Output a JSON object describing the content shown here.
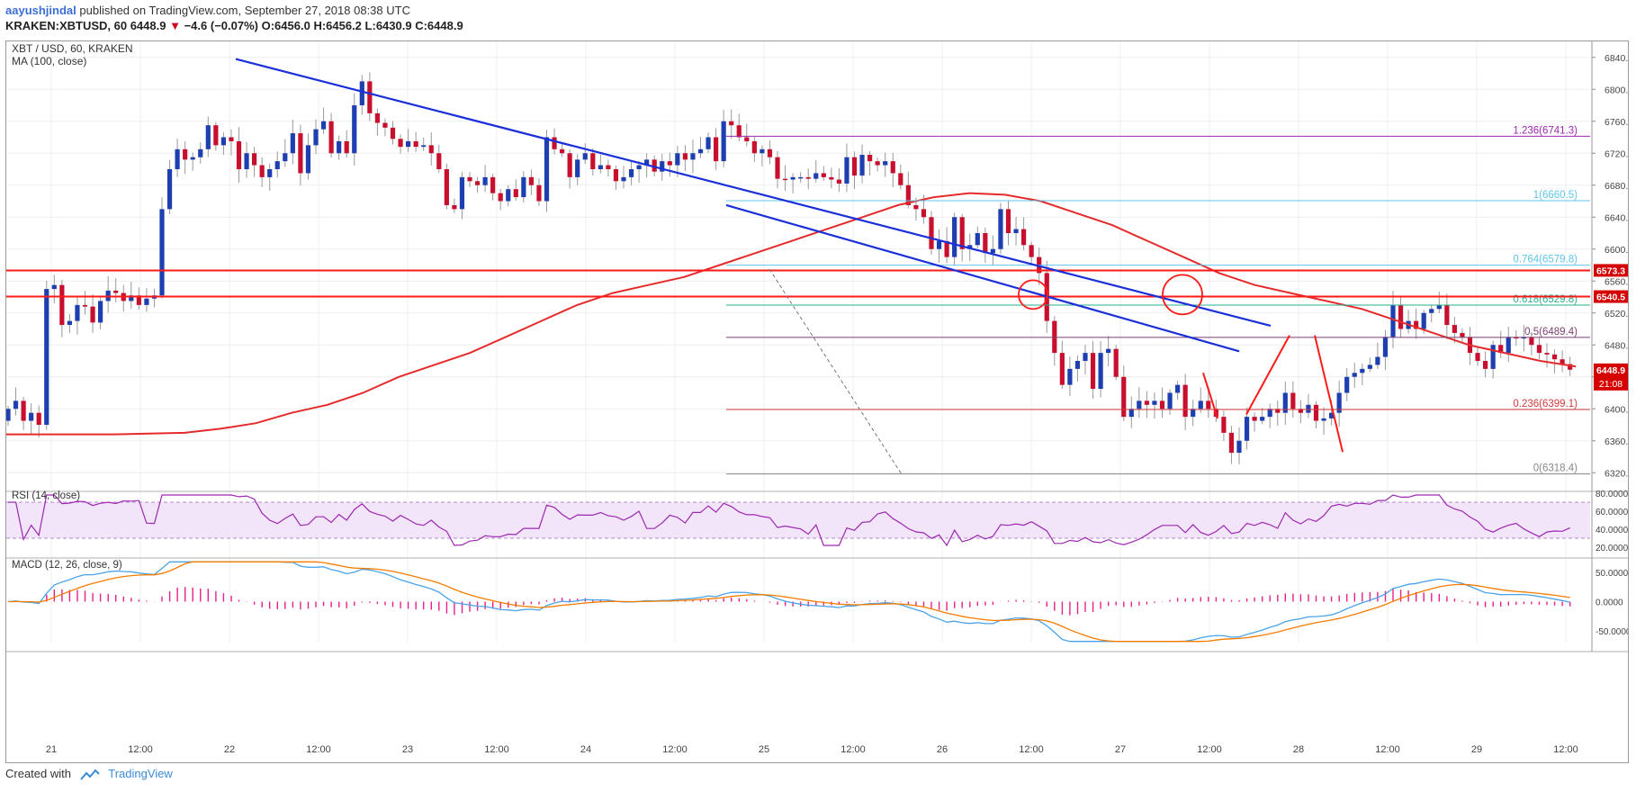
{
  "header": {
    "author": "aayushjindal",
    "published": "published on TradingView.com, September 27, 2018 08:38 UTC",
    "symbol": "KRAKEN:XBTUSD, 60",
    "price": "6448.9",
    "change_arrow": "▼",
    "change": "−4.6 (−0.07%)",
    "o": "O:6456.0",
    "h": "H:6456.2",
    "l": "L:6430.9",
    "c": "C:6448.9"
  },
  "footer": {
    "created_with": "Created with",
    "brand": "TradingView"
  },
  "colors": {
    "up": "#1e3fb0",
    "down": "#c8102e",
    "trendline": "#1a2fd8",
    "ma": "#e52b2b",
    "rsi": "#9c27b0",
    "macd": "#4aa3e8",
    "signal": "#f57c00",
    "hist": "#e91e8c",
    "fib_1236": "#9c27b0",
    "fib_1": "#5fc6e8",
    "fib_0764": "#5fc6e8",
    "fib_0618": "#27b08f",
    "fib_05": "#7b3f6f",
    "fib_0236": "#d33a3a",
    "fib_0": "#888888",
    "sr": "#ff1a1a",
    "price_tag": "#d50000"
  },
  "chart_data": [
    {
      "type": "candlestick",
      "title": "XBT / USD, 60, KRAKEN",
      "indicator": "MA (100, close)",
      "ylim": [
        6300,
        6860
      ],
      "y_ticks": [
        "6840.0",
        "6800.0",
        "6760.0",
        "6720.0",
        "6680.0",
        "6640.0",
        "6600.0",
        "6560.0",
        "6520.0",
        "6480.0",
        "6440.0",
        "6400.0",
        "6360.0",
        "6320.0"
      ],
      "x_ticks": [
        "21",
        "12:00",
        "22",
        "12:00",
        "23",
        "12:00",
        "24",
        "12:00",
        "25",
        "12:00",
        "26",
        "12:00",
        "27",
        "12:00",
        "28",
        "12:00",
        "29",
        "12:00"
      ],
      "price_tags": [
        {
          "label": "6573.3",
          "value": 6573.3
        },
        {
          "label": "6540.5",
          "value": 6540.5
        },
        {
          "label": "6448.9",
          "value": 6448.9,
          "sub": "21:08"
        }
      ],
      "fib_levels": [
        {
          "label": "1.236(6741.3)",
          "value": 6741.3,
          "color_key": "fib_1236"
        },
        {
          "label": "1(6660.5)",
          "value": 6660.5,
          "color_key": "fib_1"
        },
        {
          "label": "0.764(6579.8)",
          "value": 6579.8,
          "color_key": "fib_0764"
        },
        {
          "label": "0.618(6529.8)",
          "value": 6529.8,
          "color_key": "fib_0618"
        },
        {
          "label": "0.5(6489.4)",
          "value": 6489.4,
          "color_key": "fib_05"
        },
        {
          "label": "0.236(6399.1)",
          "value": 6399.1,
          "color_key": "fib_0236"
        },
        {
          "label": "0(6318.4)",
          "value": 6318.4,
          "color_key": "fib_0"
        }
      ],
      "support_resistance": [
        6573.3,
        6540.5
      ],
      "ohlc_close": [
        6400,
        6410,
        6385,
        6395,
        6380,
        6550,
        6555,
        6505,
        6510,
        6530,
        6528,
        6508,
        6535,
        6548,
        6545,
        6535,
        6542,
        6530,
        6538,
        6542,
        6650,
        6700,
        6725,
        6712,
        6715,
        6725,
        6755,
        6730,
        6740,
        6735,
        6700,
        6720,
        6705,
        6690,
        6700,
        6710,
        6720,
        6745,
        6695,
        6730,
        6750,
        6760,
        6720,
        6735,
        6720,
        6780,
        6810,
        6770,
        6758,
        6752,
        6738,
        6728,
        6735,
        6728,
        6730,
        6720,
        6700,
        6655,
        6650,
        6690,
        6685,
        6680,
        6690,
        6670,
        6660,
        6675,
        6665,
        6690,
        6680,
        6660,
        6740,
        6725,
        6720,
        6690,
        6712,
        6720,
        6700,
        6705,
        6700,
        6685,
        6690,
        6700,
        6705,
        6712,
        6697,
        6710,
        6705,
        6720,
        6712,
        6720,
        6725,
        6740,
        6710,
        6760,
        6755,
        6740,
        6735,
        6720,
        6725,
        6715,
        6688,
        6687,
        6690,
        6690,
        6688,
        6695,
        6690,
        6687,
        6682,
        6715,
        6692,
        6718,
        6710,
        6705,
        6710,
        6695,
        6680,
        6655,
        6650,
        6640,
        6600,
        6610,
        6590,
        6640,
        6600,
        6605,
        6620,
        6595,
        6600,
        6650,
        6620,
        6625,
        6605,
        6590,
        6570,
        6510,
        6470,
        6430,
        6450,
        6460,
        6470,
        6425,
        6470,
        6475,
        6440,
        6390,
        6400,
        6410,
        6405,
        6410,
        6400,
        6420,
        6430,
        6390,
        6400,
        6410,
        6400,
        6390,
        6370,
        6345,
        6360,
        6390,
        6385,
        6390,
        6400,
        6395,
        6420,
        6400,
        6395,
        6405,
        6385,
        6388,
        6395,
        6420,
        6440,
        6445,
        6450,
        6455,
        6465,
        6490,
        6530,
        6500,
        6510,
        6500,
        6520,
        6525,
        6530,
        6505,
        6495,
        6490,
        6470,
        6460,
        6450,
        6480,
        6470,
        6490,
        6488,
        6490,
        6480,
        6470,
        6468,
        6462,
        6456,
        6449
      ],
      "ma100": [
        6368,
        6368,
        6368,
        6368,
        6369,
        6370,
        6375,
        6382,
        6395,
        6405,
        6420,
        6440,
        6455,
        6470,
        6490,
        6510,
        6530,
        6545,
        6555,
        6565,
        6580,
        6595,
        6610,
        6625,
        6640,
        6655,
        6665,
        6670,
        6668,
        6660,
        6645,
        6630,
        6610,
        6590,
        6570,
        6555,
        6545,
        6535,
        6525,
        6510,
        6495,
        6480,
        6470,
        6460,
        6453
      ],
      "rsi": {
        "label": "RSI (14, close)",
        "ylim": [
          20,
          80
        ],
        "band": [
          30,
          70
        ],
        "y_ticks": [
          "80.0000",
          "60.0000",
          "40.0000",
          "20.0000"
        ]
      },
      "macd": {
        "label": "MACD (12, 26, close, 9)",
        "ylim": [
          -70,
          70
        ],
        "y_ticks": [
          "50.0000",
          "0.0000",
          "-50.0000"
        ]
      }
    }
  ]
}
